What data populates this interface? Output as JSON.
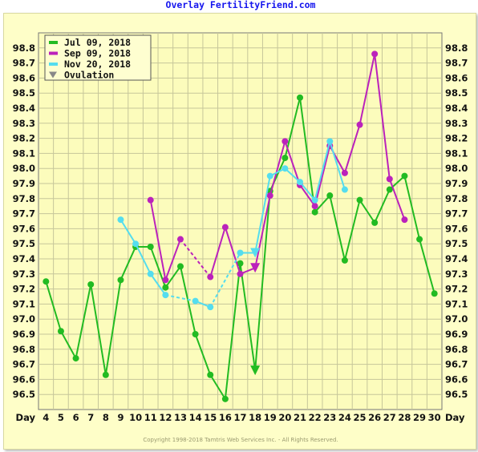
{
  "chart_data": {
    "type": "line",
    "title": "Overlay FertilityFriend.com",
    "xlabel": "Day",
    "ylabel": "",
    "copyright": "Copyright 1998-2018 Tamtris Web Services Inc. - All Rights Reserved.",
    "x": [
      4,
      5,
      6,
      7,
      8,
      9,
      10,
      11,
      12,
      13,
      14,
      15,
      16,
      17,
      18,
      19,
      20,
      21,
      22,
      23,
      24,
      25,
      26,
      27,
      28,
      29,
      30
    ],
    "yticks": [
      "96.5",
      "96.6",
      "96.7",
      "96.8",
      "96.9",
      "97.0",
      "97.1",
      "97.2",
      "97.3",
      "97.4",
      "97.5",
      "97.6",
      "97.7",
      "97.8",
      "97.9",
      "98.0",
      "98.1",
      "98.2",
      "98.3",
      "98.4",
      "98.5",
      "98.6",
      "98.7",
      "98.8"
    ],
    "ylim": [
      96.4,
      98.9
    ],
    "grid": true,
    "legend_position": "top-left",
    "series": [
      {
        "name": "Jul 09, 2018",
        "color": "#22bb22",
        "points": [
          [
            4,
            97.25
          ],
          [
            5,
            96.92
          ],
          [
            6,
            96.74
          ],
          [
            7,
            97.23
          ],
          [
            8,
            96.63
          ],
          [
            9,
            97.26
          ],
          [
            10,
            97.48
          ],
          [
            11,
            97.48
          ],
          [
            12,
            97.21
          ],
          [
            13,
            97.35
          ],
          [
            14,
            96.9
          ],
          [
            15,
            96.63
          ],
          [
            16,
            96.47
          ],
          [
            17,
            97.37
          ],
          [
            18,
            96.66
          ],
          [
            19,
            97.85
          ],
          [
            20,
            98.07
          ],
          [
            21,
            98.47
          ],
          [
            22,
            97.71
          ],
          [
            23,
            97.82
          ],
          [
            24,
            97.39
          ],
          [
            25,
            97.79
          ],
          [
            26,
            97.64
          ],
          [
            27,
            97.86
          ],
          [
            28,
            97.95
          ],
          [
            29,
            97.53
          ],
          [
            30,
            97.17
          ]
        ],
        "dashed_segments": [],
        "ovulation": {
          "day": 18,
          "temp": 96.66
        }
      },
      {
        "name": "Sep 09, 2018",
        "color": "#bb22bb",
        "points": [
          [
            11,
            97.79
          ],
          [
            12,
            97.26
          ],
          [
            13,
            97.53
          ],
          [
            15,
            97.28
          ],
          [
            16,
            97.61
          ],
          [
            17,
            97.3
          ],
          [
            18,
            97.34
          ],
          [
            19,
            97.82
          ],
          [
            20,
            98.18
          ],
          [
            21,
            97.89
          ],
          [
            22,
            97.75
          ],
          [
            23,
            98.15
          ],
          [
            24,
            97.97
          ],
          [
            25,
            98.29
          ],
          [
            26,
            98.76
          ],
          [
            27,
            97.93
          ],
          [
            28,
            97.66
          ]
        ],
        "dashed_segments": [
          [
            13,
            15
          ]
        ],
        "ovulation": {
          "day": 18,
          "temp": 97.34
        }
      },
      {
        "name": "Nov 20, 2018",
        "color": "#55ddee",
        "points": [
          [
            9,
            97.66
          ],
          [
            10,
            97.5
          ],
          [
            11,
            97.3
          ],
          [
            12,
            97.16
          ],
          [
            14,
            97.12
          ],
          [
            15,
            97.08
          ],
          [
            17,
            97.44
          ],
          [
            18,
            97.44
          ],
          [
            19,
            97.95
          ],
          [
            20,
            98.0
          ],
          [
            21,
            97.91
          ],
          [
            22,
            97.79
          ],
          [
            23,
            98.18
          ],
          [
            24,
            97.86
          ]
        ],
        "dashed_segments": [
          [
            12,
            14
          ],
          [
            15,
            17
          ]
        ],
        "ovulation": {
          "day": 18,
          "temp": 97.44
        }
      }
    ],
    "legend_items": [
      {
        "label": "Jul 09, 2018",
        "color": "#22bb22",
        "marker": "line"
      },
      {
        "label": "Sep 09, 2018",
        "color": "#bb22bb",
        "marker": "line"
      },
      {
        "label": "Nov 20, 2018",
        "color": "#55ddee",
        "marker": "line"
      },
      {
        "label": "Ovulation",
        "color": "#888888",
        "marker": "triangle-down"
      }
    ]
  }
}
